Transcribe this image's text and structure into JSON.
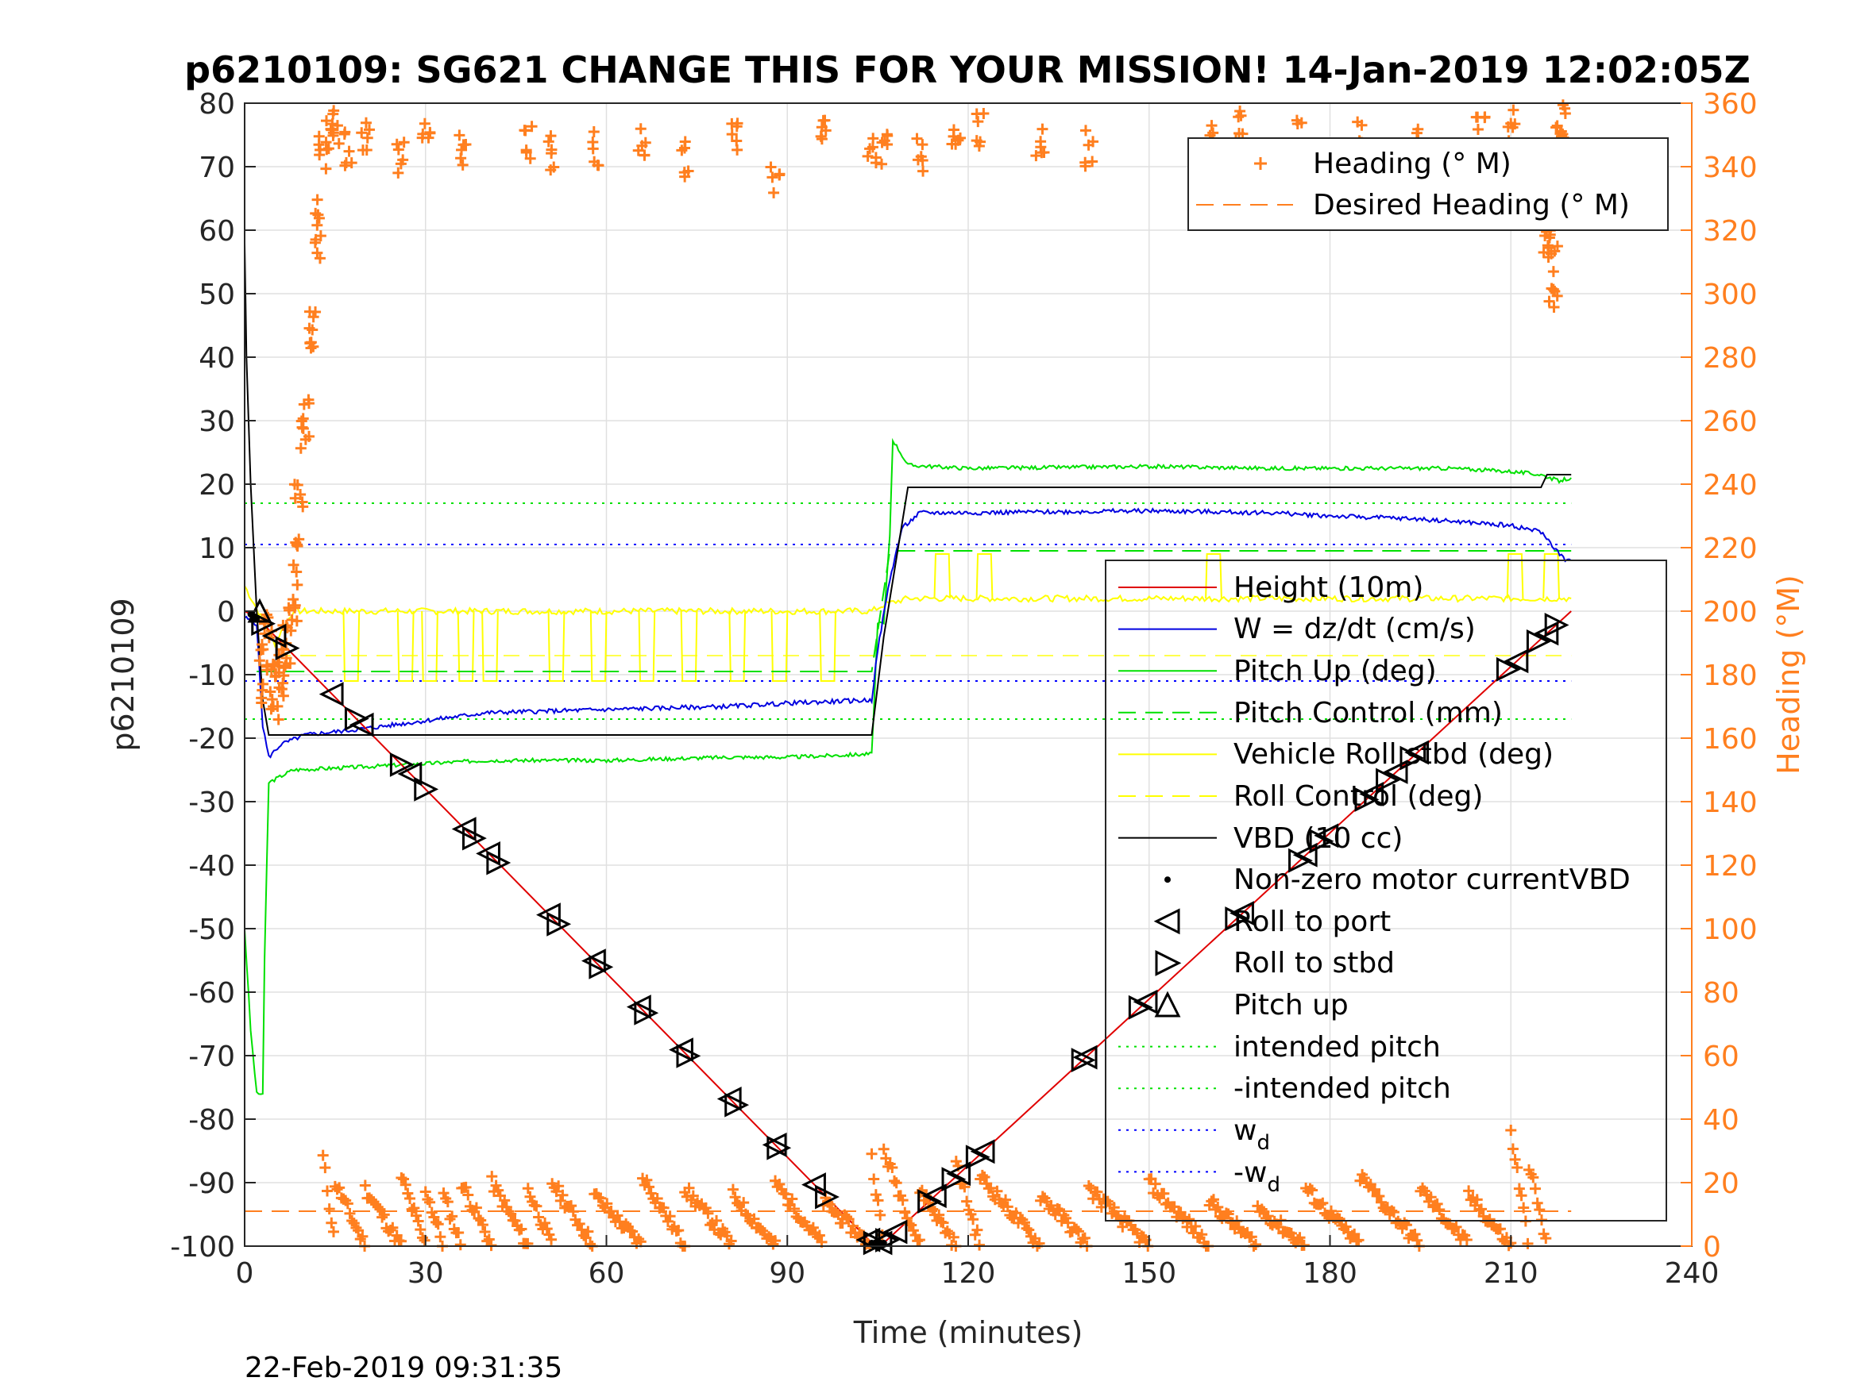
{
  "chart_data": {
    "type": "line",
    "title": "p6210109: SG621 CHANGE THIS FOR YOUR MISSION! 14-Jan-2019 12:02:05Z",
    "xlabel": "Time (minutes)",
    "ylabel": "p6210109",
    "y2label": "Heading (°M)",
    "xlim": [
      0,
      240
    ],
    "ylim": [
      -100,
      80
    ],
    "y2lim": [
      0,
      360
    ],
    "xticks": [
      "0",
      "30",
      "60",
      "90",
      "120",
      "150",
      "180",
      "210",
      "240"
    ],
    "yticks": [
      "-100",
      "-90",
      "-80",
      "-70",
      "-60",
      "-50",
      "-40",
      "-30",
      "-20",
      "-10",
      "0",
      "10",
      "20",
      "30",
      "40",
      "50",
      "60",
      "70",
      "80"
    ],
    "y2ticks": [
      "0",
      "20",
      "40",
      "60",
      "80",
      "100",
      "120",
      "140",
      "160",
      "180",
      "200",
      "220",
      "240",
      "260",
      "280",
      "300",
      "320",
      "340",
      "360"
    ],
    "grid": true,
    "timestamp": "22-Feb-2019 09:31:35",
    "colors": {
      "heading": "#ff7f1f",
      "height": "#e00000",
      "w": "#0000e0",
      "pitch": "#00e000",
      "roll": "#ffff00",
      "vbd": "#000000",
      "wd": "#0000ff"
    },
    "legend_top": {
      "placement": "top-right",
      "entries": [
        {
          "label": "Heading (° M)",
          "style": "plus",
          "color": "#ff7f1f"
        },
        {
          "label": "Desired Heading (° M)",
          "style": "dashed",
          "color": "#ff7f1f"
        }
      ]
    },
    "legend_main": {
      "placement": "right",
      "entries": [
        {
          "label": "Height (10m)",
          "style": "line",
          "color": "#e00000"
        },
        {
          "label": "W = dz/dt (cm/s)",
          "style": "line",
          "color": "#0000e0"
        },
        {
          "label": "Pitch Up (deg)",
          "style": "line",
          "color": "#00e000"
        },
        {
          "label": "Pitch Control (mm)",
          "style": "dashed",
          "color": "#00e000"
        },
        {
          "label": "Vehicle Roll stbd (deg)",
          "style": "line",
          "color": "#ffff00"
        },
        {
          "label": "Roll Control (deg)",
          "style": "dashed",
          "color": "#ffff00"
        },
        {
          "label": "VBD (10 cc)",
          "style": "line",
          "color": "#000000"
        },
        {
          "label": "Non-zero motor currentVBD",
          "style": "dot",
          "color": "#000000"
        },
        {
          "label": "Roll to port",
          "style": "tri-left",
          "color": "#000000"
        },
        {
          "label": "Roll to stbd",
          "style": "tri-right",
          "color": "#000000"
        },
        {
          "label": "Pitch up",
          "style": "tri-up",
          "color": "#000000"
        },
        {
          "label": "intended pitch",
          "style": "dotted",
          "color": "#00e000"
        },
        {
          "label": "-intended pitch",
          "style": "dotted",
          "color": "#00e000"
        },
        {
          "label": "w",
          "sub": "d",
          "style": "dotted",
          "color": "#0000ff"
        },
        {
          "label": "-w",
          "sub": "d",
          "style": "dotted",
          "color": "#0000ff"
        }
      ]
    },
    "series": [
      {
        "name": "Height (10m)",
        "axis": "left",
        "x": [
          0,
          2,
          104,
          106,
          220
        ],
        "y": [
          0,
          -1,
          -99.5,
          -99.5,
          0
        ]
      },
      {
        "name": "W = dz/dt (cm/s)",
        "axis": "left",
        "x": [
          0,
          2,
          3,
          4,
          6,
          10,
          20,
          40,
          60,
          80,
          90,
          104,
          105,
          107,
          109,
          112,
          120,
          150,
          170,
          180,
          195,
          210,
          215,
          219,
          220
        ],
        "y": [
          -1,
          -2,
          -18,
          -23,
          -21,
          -19.5,
          -18.5,
          -16,
          -15.5,
          -15,
          -14.5,
          -14,
          -6,
          5,
          13,
          15.5,
          15.5,
          15.8,
          15.5,
          15,
          14.5,
          13.5,
          12.5,
          8,
          8
        ]
      },
      {
        "name": "Pitch Up (deg)",
        "axis": "left",
        "x": [
          0,
          1,
          2,
          3,
          3.3,
          4,
          8,
          20,
          40,
          60,
          80,
          90,
          104,
          105,
          106,
          107,
          107.5,
          110,
          120,
          150,
          170,
          200,
          210,
          215,
          218,
          220
        ],
        "y": [
          -50,
          -66,
          -76,
          -76,
          -55,
          -27,
          -25,
          -24.5,
          -23.5,
          -23.5,
          -23,
          -23,
          -22.5,
          -2,
          -2,
          12,
          27,
          23,
          22.5,
          22.8,
          22.5,
          22.5,
          22,
          21.5,
          20.5,
          21
        ]
      },
      {
        "name": "Pitch Control (mm)",
        "axis": "left",
        "x": [
          2,
          104,
          107,
          220
        ],
        "y": [
          -9.5,
          -9.5,
          9.5,
          9.5
        ]
      },
      {
        "name": "Vehicle Roll stbd (deg)",
        "axis": "left",
        "x": [
          0,
          5,
          8,
          15,
          104,
          106,
          110,
          220
        ],
        "y": [
          4,
          -5,
          0,
          0,
          0,
          1,
          2,
          2
        ],
        "spikes": [
          17,
          26,
          30,
          36,
          40,
          51,
          58,
          66,
          73,
          81,
          88,
          96,
          115,
          122,
          160,
          210,
          216
        ]
      },
      {
        "name": "Roll Control (deg)",
        "axis": "left",
        "x": [
          5,
          220
        ],
        "y": [
          -7,
          -7
        ]
      },
      {
        "name": "VBD (10 cc)",
        "axis": "left",
        "x": [
          0,
          0.3,
          1,
          2,
          3,
          4,
          10,
          104,
          106,
          110,
          215,
          216,
          220
        ],
        "y": [
          58,
          40,
          20,
          0,
          -14,
          -19.5,
          -19.5,
          -19.5,
          -4,
          19.5,
          19.5,
          21.5,
          21.5
        ]
      },
      {
        "name": "intended pitch",
        "axis": "left",
        "x": [
          0,
          220
        ],
        "y": [
          17,
          17
        ]
      },
      {
        "name": "-intended pitch",
        "axis": "left",
        "x": [
          0,
          220
        ],
        "y": [
          -17,
          -17
        ]
      },
      {
        "name": "w",
        "axis": "left",
        "x": [
          0,
          220
        ],
        "y": [
          10.5,
          10.5
        ]
      },
      {
        "name": "-w",
        "axis": "left",
        "x": [
          0,
          220
        ],
        "y": [
          -11,
          -11
        ]
      },
      {
        "name": "Desired Heading (° M)",
        "axis": "right",
        "x": [
          0,
          220
        ],
        "y": [
          11,
          11
        ]
      },
      {
        "name": "Heading (° M)",
        "axis": "right",
        "sawtooth_bottom_x": [
          13,
          15,
          20,
          26,
          30,
          33,
          36,
          41,
          47,
          51,
          58,
          66,
          73,
          81,
          88,
          96,
          104,
          106,
          112,
          118,
          122,
          132,
          140,
          150,
          160,
          168,
          176,
          185,
          195,
          203,
          210,
          213,
          216
        ],
        "sawtooth_bottom_y": [
          28,
          20,
          18,
          22,
          18,
          16,
          20,
          20,
          18,
          20,
          16,
          22,
          18,
          16,
          20,
          14,
          28,
          30,
          18,
          26,
          22,
          16,
          18,
          20,
          14,
          12,
          18,
          22,
          18,
          16,
          36,
          26,
          28
        ],
        "top_clusters_x": [
          3,
          4,
          5,
          6,
          7,
          8,
          9,
          10,
          11,
          12,
          13,
          14,
          15,
          17,
          20,
          26,
          30,
          36,
          47,
          51,
          58,
          66,
          73,
          81,
          88,
          96,
          104,
          106,
          112,
          118,
          122,
          132,
          140,
          160,
          165,
          175,
          185,
          195,
          205,
          210,
          215,
          216,
          217,
          218,
          219
        ],
        "top_clusters_y": [
          190,
          200,
          185,
          190,
          200,
          215,
          240,
          270,
          300,
          330,
          350,
          355,
          358,
          352,
          355,
          348,
          356,
          350,
          354,
          350,
          352,
          354,
          348,
          355,
          340,
          356,
          350,
          352,
          350,
          355,
          358,
          355,
          352,
          355,
          358,
          356,
          355,
          352,
          356,
          358,
          348,
          330,
          315,
          355,
          360
        ]
      }
    ]
  }
}
